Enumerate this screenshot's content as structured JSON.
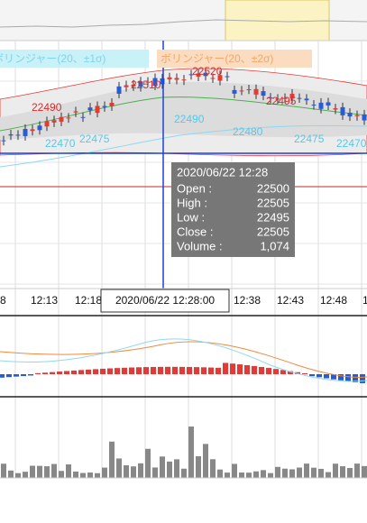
{
  "legend": [
    "ボリンジャー(20、±1σ)",
    "ボリンジャー(20、±2σ)"
  ],
  "price_labels": {
    "red": [
      "22490",
      "22510",
      "22520",
      "22495"
    ],
    "cyan": [
      "22470",
      "22475",
      "22490",
      "22480",
      "22475",
      "22470"
    ]
  },
  "time_axis": [
    "8",
    "12:13",
    "12:18",
    "2020/06/22 12:28:00",
    "12:38",
    "12:43",
    "12:48",
    "1"
  ],
  "tooltip": {
    "title": "2020/06/22 12:28",
    "rows": [
      [
        "Open :",
        "22500"
      ],
      [
        "High :",
        "22505"
      ],
      [
        "Low :",
        "22495"
      ],
      [
        "Close :",
        "22505"
      ],
      [
        "Volume :",
        "1,074"
      ]
    ]
  }
}
